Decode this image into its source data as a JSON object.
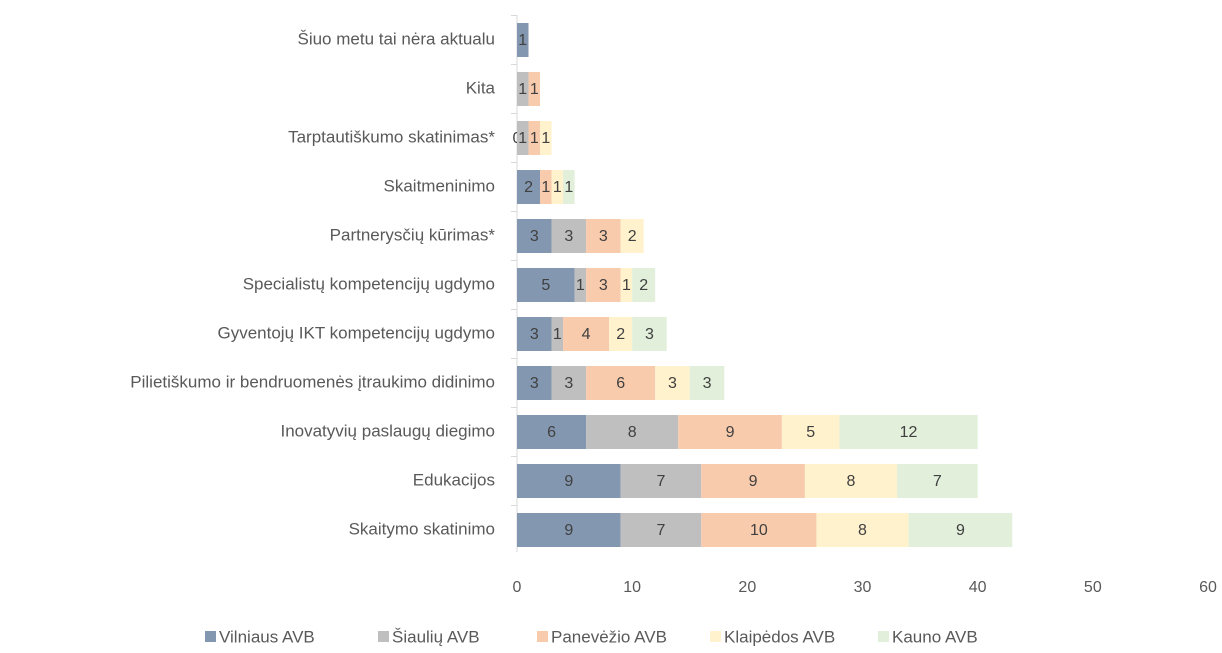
{
  "chart_data": {
    "type": "stacked_barh",
    "categories": [
      "Šiuo metu tai nėra aktualu",
      "Kita",
      "Tarptautiškumo skatinimas*",
      "Skaitmeninimo",
      "Partnerysčių kūrimas*",
      "Specialistų kompetencijų ugdymo",
      "Gyventojų IKT kompetencijų ugdymo",
      "Pilietiškumo ir bendruomenės įtraukimo didinimo",
      "Inovatyvių paslaugų diegimo",
      "Edukacijos",
      "Skaitymo skatinimo"
    ],
    "series": [
      {
        "name": "Vilniaus AVB",
        "color": "#8497b0",
        "values": [
          1,
          null,
          0,
          2,
          3,
          5,
          3,
          3,
          6,
          9,
          9
        ]
      },
      {
        "name": "Šiaulių AVB",
        "color": "#bfbfbf",
        "values": [
          null,
          1,
          1,
          null,
          3,
          1,
          1,
          3,
          8,
          7,
          7
        ]
      },
      {
        "name": "Panevėžio AVB",
        "color": "#f8cbad",
        "values": [
          null,
          1,
          1,
          1,
          3,
          3,
          4,
          6,
          9,
          9,
          10
        ]
      },
      {
        "name": "Klaipėdos AVB",
        "color": "#fff2cc",
        "values": [
          null,
          null,
          1,
          1,
          2,
          1,
          2,
          3,
          5,
          8,
          8
        ]
      },
      {
        "name": "Kauno AVB",
        "color": "#e2efda",
        "values": [
          null,
          null,
          null,
          1,
          null,
          2,
          3,
          3,
          12,
          7,
          9
        ]
      }
    ],
    "xlim": [
      0,
      60
    ],
    "xticks": [
      0,
      10,
      20,
      30,
      40,
      50,
      60
    ],
    "legend": "bottom"
  }
}
